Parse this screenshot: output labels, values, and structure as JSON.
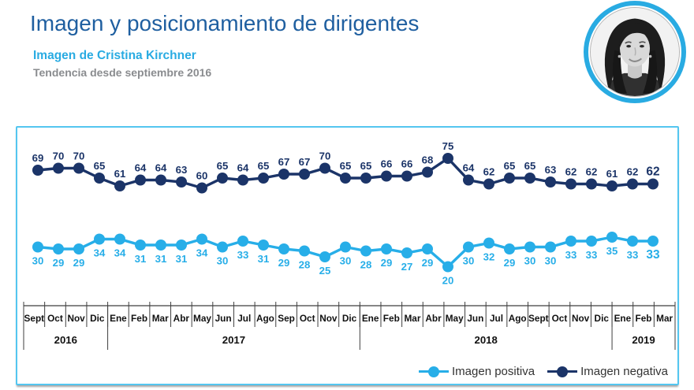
{
  "header": {
    "title": "Imagen y posicionamiento de dirigentes",
    "subtitle": "Imagen de Cristina Kirchner",
    "trend_note": "Tendencia desde septiembre 2016"
  },
  "avatar": {
    "description": "circular black-and-white portrait of Cristina Kirchner with cyan ring"
  },
  "colors": {
    "title_blue": "#1F5FA0",
    "subtitle_cyan": "#29ABE2",
    "note_gray": "#8A8C8F",
    "panel_border": "#54C6F0",
    "positive": "#27AEE8",
    "negative": "#1B3468",
    "axis_line": "#3f3f3f"
  },
  "legend": {
    "position": "bottom-right",
    "items": [
      {
        "id": "positive",
        "label": "Imagen positiva",
        "color": "#27AEE8"
      },
      {
        "id": "negative",
        "label": "Imagen negativa",
        "color": "#1B3468"
      }
    ]
  },
  "chart_data": {
    "type": "line",
    "title": "Imagen de Cristina Kirchner",
    "xlabel": "",
    "ylabel": "",
    "ylim": [
      0,
      80
    ],
    "grid": false,
    "data_labels": true,
    "categories": [
      "Sept",
      "Oct",
      "Nov",
      "Dic",
      "Ene",
      "Feb",
      "Mar",
      "Abr",
      "May",
      "Jun",
      "Jul",
      "Ago",
      "Sep",
      "Oct",
      "Nov",
      "Dic",
      "Ene",
      "Feb",
      "Mar",
      "Abr",
      "May",
      "Jun",
      "Jul",
      "Ago",
      "Sept",
      "Oct",
      "Nov",
      "Dic",
      "Ene",
      "Feb",
      "Mar"
    ],
    "year_groups": [
      {
        "label": "2016",
        "count": 4
      },
      {
        "label": "2017",
        "count": 12
      },
      {
        "label": "2018",
        "count": 12
      },
      {
        "label": "2019",
        "count": 3
      }
    ],
    "series": [
      {
        "name": "Imagen negativa",
        "color": "#1B3468",
        "label_position": "above",
        "values": [
          69,
          70,
          70,
          65,
          61,
          64,
          64,
          63,
          60,
          65,
          64,
          65,
          67,
          67,
          70,
          65,
          65,
          66,
          66,
          68,
          75,
          64,
          62,
          65,
          65,
          63,
          62,
          62,
          61,
          62,
          62
        ]
      },
      {
        "name": "Imagen positiva",
        "color": "#27AEE8",
        "label_position": "below",
        "values": [
          30,
          29,
          29,
          34,
          34,
          31,
          31,
          31,
          34,
          30,
          33,
          31,
          29,
          28,
          25,
          30,
          28,
          29,
          27,
          29,
          20,
          30,
          32,
          29,
          30,
          30,
          33,
          33,
          35,
          33,
          33
        ]
      }
    ]
  }
}
